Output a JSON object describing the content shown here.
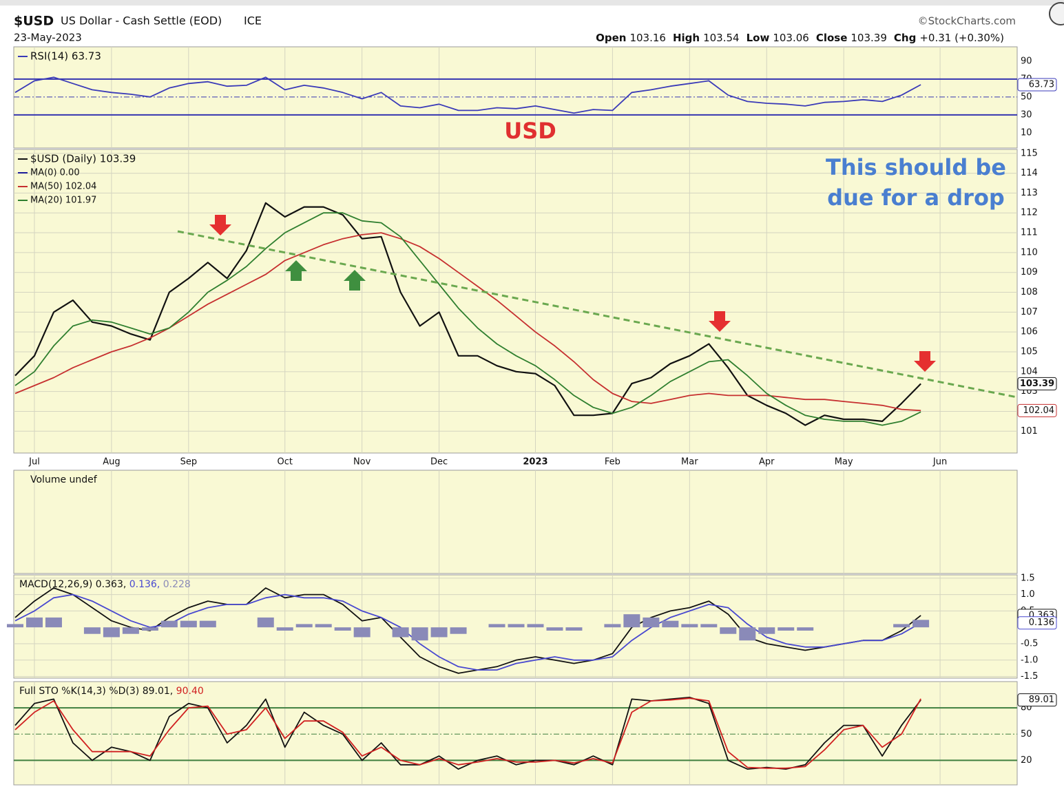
{
  "header": {
    "symbol": "$USD",
    "name": "US Dollar - Cash Settle (EOD)",
    "exchange": "ICE",
    "date": "23-May-2023",
    "source": "©StockCharts.com",
    "quote": [
      {
        "label": "Open",
        "value": 103.16
      },
      {
        "label": "High",
        "value": 103.54
      },
      {
        "label": "Low",
        "value": 103.06
      },
      {
        "label": "Close",
        "value": 103.39
      },
      {
        "label": "Chg",
        "value": "+0.31 (+0.30%)"
      }
    ]
  },
  "annotations": {
    "title": "USD",
    "note": [
      "This should be",
      "due for a drop"
    ]
  },
  "chart_data": [
    {
      "type": "line",
      "ylim": [
        -7,
        106
      ],
      "yticks": [
        10,
        30,
        50,
        70,
        90
      ],
      "bands": [
        30,
        70
      ],
      "midline": 50,
      "series": [
        {
          "name": "RSI(14) 63.73",
          "color": "#3a3ab8",
          "tag": true,
          "values": [
            55,
            68,
            72,
            65,
            58,
            55,
            53,
            50,
            60,
            65,
            67,
            62,
            63,
            72,
            58,
            63,
            60,
            55,
            48,
            55,
            40,
            38,
            42,
            35,
            35,
            38,
            37,
            40,
            36,
            32,
            36,
            35,
            55,
            58,
            62,
            65,
            68,
            52,
            45,
            43,
            42,
            40,
            44,
            45,
            47,
            45,
            52,
            63.73,
            null,
            null,
            null,
            null,
            null
          ]
        }
      ]
    },
    {
      "type": "line",
      "ylim": [
        99.9,
        115.2
      ],
      "yticks": [
        101,
        102,
        103,
        104,
        105,
        106,
        107,
        108,
        109,
        110,
        111,
        112,
        113,
        114,
        115
      ],
      "grid": true,
      "categories": [
        null,
        "Jul",
        null,
        null,
        null,
        "Aug",
        null,
        null,
        null,
        "Sep",
        null,
        null,
        null,
        null,
        "Oct",
        null,
        null,
        null,
        "Nov",
        null,
        null,
        null,
        "Dec",
        null,
        null,
        null,
        null,
        "2023",
        null,
        null,
        null,
        "Feb",
        null,
        null,
        null,
        "Mar",
        null,
        null,
        null,
        "Apr",
        null,
        null,
        null,
        "May",
        null,
        null,
        null,
        null,
        "Jun",
        null,
        null,
        null,
        null
      ],
      "extra_legend": {
        "name": "MA(0) 0.00",
        "color": "#1c1c9a"
      },
      "series": [
        {
          "name": "$USD (Daily) 103.39",
          "color": "#111111",
          "tag": true,
          "values": [
            103.8,
            104.8,
            107.0,
            107.6,
            106.5,
            106.3,
            105.9,
            105.6,
            108.0,
            108.7,
            109.5,
            108.7,
            110.1,
            112.5,
            111.8,
            112.3,
            112.3,
            111.9,
            110.7,
            110.8,
            108.0,
            106.3,
            107.0,
            104.8,
            104.8,
            104.3,
            104.0,
            103.9,
            103.3,
            101.8,
            101.8,
            101.9,
            103.4,
            103.7,
            104.4,
            104.8,
            105.4,
            104.2,
            102.8,
            102.3,
            101.9,
            101.3,
            101.8,
            101.6,
            101.6,
            101.5,
            102.4,
            103.39,
            null,
            null,
            null,
            null,
            null
          ]
        },
        {
          "name": "MA(50) 102.04",
          "color": "#c62f2f",
          "tag": true,
          "values": [
            102.9,
            103.3,
            103.7,
            104.2,
            104.6,
            105.0,
            105.3,
            105.7,
            106.2,
            106.8,
            107.4,
            107.9,
            108.4,
            108.9,
            109.6,
            110.0,
            110.4,
            110.7,
            110.9,
            111.0,
            110.7,
            110.3,
            109.7,
            109.0,
            108.3,
            107.6,
            106.8,
            106.0,
            105.3,
            104.5,
            103.6,
            102.9,
            102.5,
            102.4,
            102.6,
            102.8,
            102.9,
            102.8,
            102.8,
            102.8,
            102.7,
            102.6,
            102.6,
            102.5,
            102.4,
            102.3,
            102.1,
            102.04,
            null,
            null,
            null,
            null,
            null
          ]
        },
        {
          "name": "MA(20) 101.97",
          "color": "#2f7f2f",
          "values": [
            103.3,
            104.0,
            105.3,
            106.3,
            106.6,
            106.5,
            106.2,
            105.9,
            106.2,
            107.0,
            108.0,
            108.6,
            109.3,
            110.2,
            111.0,
            111.5,
            112.0,
            112.0,
            111.6,
            111.5,
            110.8,
            109.6,
            108.4,
            107.2,
            106.2,
            105.4,
            104.8,
            104.3,
            103.6,
            102.8,
            102.2,
            101.9,
            102.2,
            102.8,
            103.5,
            104.0,
            104.5,
            104.6,
            103.8,
            102.9,
            102.3,
            101.8,
            101.6,
            101.5,
            101.5,
            101.3,
            101.5,
            101.97,
            null,
            null,
            null,
            null,
            null
          ]
        }
      ]
    },
    {
      "type": "volume",
      "title": "Volume undef"
    },
    {
      "type": "line",
      "ylim": [
        -1.55,
        1.6
      ],
      "yticks": [
        {
          "value": -1.5,
          "label": "-1.5"
        },
        {
          "value": -1,
          "label": "-1.0"
        },
        {
          "value": -0.5,
          "label": "-0.5"
        },
        {
          "value": 0.5,
          "label": "0.5"
        },
        {
          "value": 1,
          "label": "1.0"
        },
        {
          "value": 1.5,
          "label": "1.5"
        }
      ],
      "grid": true,
      "legend": [
        "MACD(12,26,9) 0.363,",
        " 0.136,",
        " 0.228"
      ],
      "series": [
        {
          "color": "#111111",
          "tag": true,
          "values": [
            0.3,
            0.8,
            1.2,
            1.0,
            0.6,
            0.2,
            0.0,
            -0.1,
            0.3,
            0.6,
            0.8,
            0.7,
            0.7,
            1.2,
            0.9,
            1.0,
            1.0,
            0.7,
            0.2,
            0.3,
            -0.3,
            -0.9,
            -1.2,
            -1.4,
            -1.3,
            -1.2,
            -1.0,
            -0.9,
            -1.0,
            -1.1,
            -1.0,
            -0.8,
            0.0,
            0.3,
            0.5,
            0.6,
            0.8,
            0.4,
            -0.3,
            -0.5,
            -0.6,
            -0.7,
            -0.6,
            -0.5,
            -0.4,
            -0.4,
            -0.1,
            0.363,
            null,
            null,
            null,
            null,
            null
          ]
        },
        {
          "color": "#4848d0",
          "tag": true,
          "values": [
            0.2,
            0.5,
            0.9,
            1.0,
            0.8,
            0.5,
            0.2,
            0.0,
            0.1,
            0.4,
            0.6,
            0.7,
            0.7,
            0.9,
            1.0,
            0.9,
            0.9,
            0.8,
            0.5,
            0.3,
            0.0,
            -0.5,
            -0.9,
            -1.2,
            -1.3,
            -1.3,
            -1.1,
            -1.0,
            -0.9,
            -1.0,
            -1.0,
            -0.9,
            -0.4,
            0.0,
            0.3,
            0.5,
            0.7,
            0.6,
            0.1,
            -0.3,
            -0.5,
            -0.6,
            -0.6,
            -0.5,
            -0.4,
            -0.4,
            -0.2,
            0.136,
            null,
            null,
            null,
            null,
            null
          ]
        },
        {
          "color": "#8a8ab8",
          "style": "histogram",
          "values": [
            0.1,
            0.3,
            0.3,
            0.0,
            -0.2,
            -0.3,
            -0.2,
            -0.1,
            0.2,
            0.2,
            0.2,
            0.0,
            0.0,
            0.3,
            -0.1,
            0.1,
            0.1,
            -0.1,
            -0.3,
            0.0,
            -0.3,
            -0.4,
            -0.3,
            -0.2,
            0.0,
            0.1,
            0.1,
            0.1,
            -0.1,
            -0.1,
            0.0,
            0.1,
            0.4,
            0.3,
            0.2,
            0.1,
            0.1,
            -0.2,
            -0.4,
            -0.2,
            -0.1,
            -0.1,
            0.0,
            0.0,
            0.0,
            0.0,
            0.1,
            0.228,
            null,
            null,
            null,
            null,
            null
          ]
        }
      ]
    },
    {
      "type": "line",
      "ylim": [
        -8,
        110
      ],
      "yticks": [
        20,
        50,
        80
      ],
      "bands": [
        20,
        80
      ],
      "midline": 50,
      "legend": [
        "Full STO %K(14,3) %D(3) 89.01,",
        " 90.40"
      ],
      "series": [
        {
          "color": "#111111",
          "tag": true,
          "values": [
            60,
            85,
            90,
            40,
            20,
            35,
            30,
            20,
            70,
            85,
            80,
            40,
            60,
            90,
            35,
            75,
            60,
            50,
            20,
            40,
            15,
            15,
            25,
            10,
            20,
            25,
            15,
            20,
            20,
            15,
            25,
            15,
            90,
            88,
            90,
            92,
            85,
            20,
            10,
            12,
            10,
            15,
            40,
            60,
            60,
            25,
            60,
            89.01,
            null,
            null,
            null,
            null,
            null
          ]
        },
        {
          "color": "#d02020",
          "values": [
            55,
            75,
            88,
            55,
            30,
            30,
            30,
            25,
            55,
            80,
            82,
            50,
            55,
            80,
            45,
            65,
            65,
            52,
            25,
            35,
            20,
            15,
            22,
            15,
            18,
            22,
            18,
            18,
            20,
            17,
            22,
            17,
            75,
            88,
            89,
            91,
            88,
            30,
            12,
            11,
            11,
            13,
            32,
            55,
            60,
            35,
            50,
            90.4,
            null,
            null,
            null,
            null,
            null
          ]
        }
      ]
    }
  ]
}
